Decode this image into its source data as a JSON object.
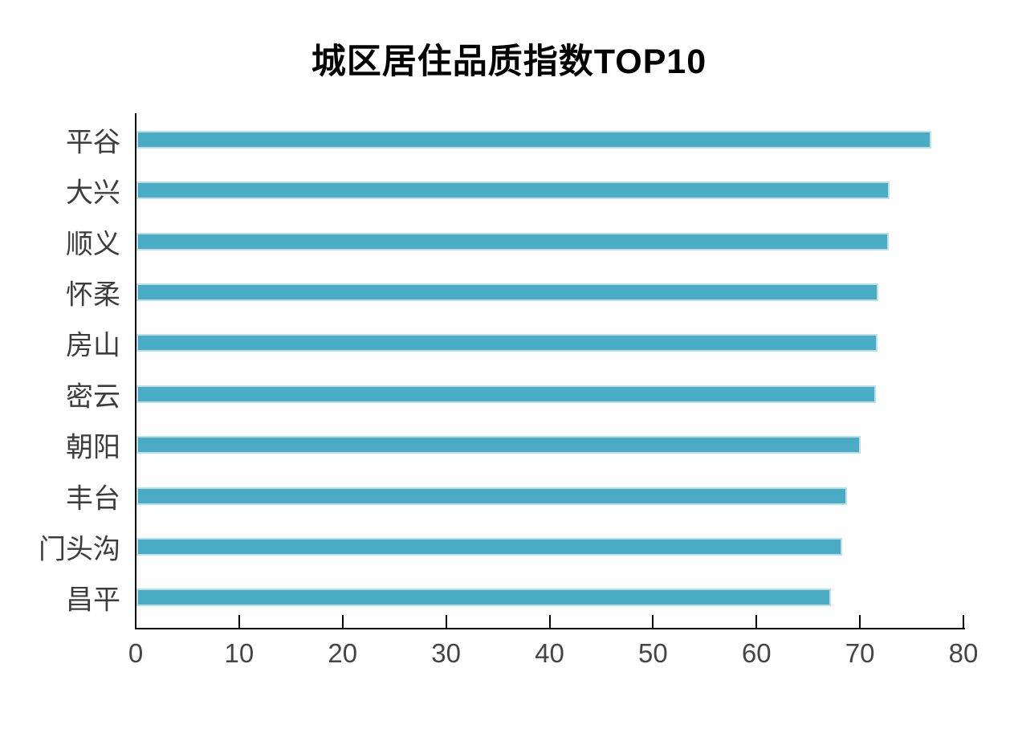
{
  "chart_data": {
    "type": "bar",
    "orientation": "horizontal",
    "title": "城区居住品质指数TOP10",
    "categories": [
      "平谷",
      "大兴",
      "顺义",
      "怀柔",
      "房山",
      "密云",
      "朝阳",
      "丰台",
      "门头沟",
      "昌平"
    ],
    "values": [
      76.8,
      72.8,
      72.7,
      71.7,
      71.6,
      71.5,
      70.0,
      68.7,
      68.2,
      67.1
    ],
    "xlabel": "",
    "ylabel": "",
    "xlim": [
      0,
      80
    ],
    "xticks": [
      0,
      10,
      20,
      30,
      40,
      50,
      60,
      70,
      80
    ],
    "grid": false,
    "legend_position": "none",
    "colors": {
      "bar": "#4aabc5",
      "bar_border": "#bcdfea",
      "axis": "#000000",
      "tick_label": "#454545",
      "category_label": "#3d3d3d",
      "title": "#000000",
      "background": "#ffffff"
    }
  }
}
